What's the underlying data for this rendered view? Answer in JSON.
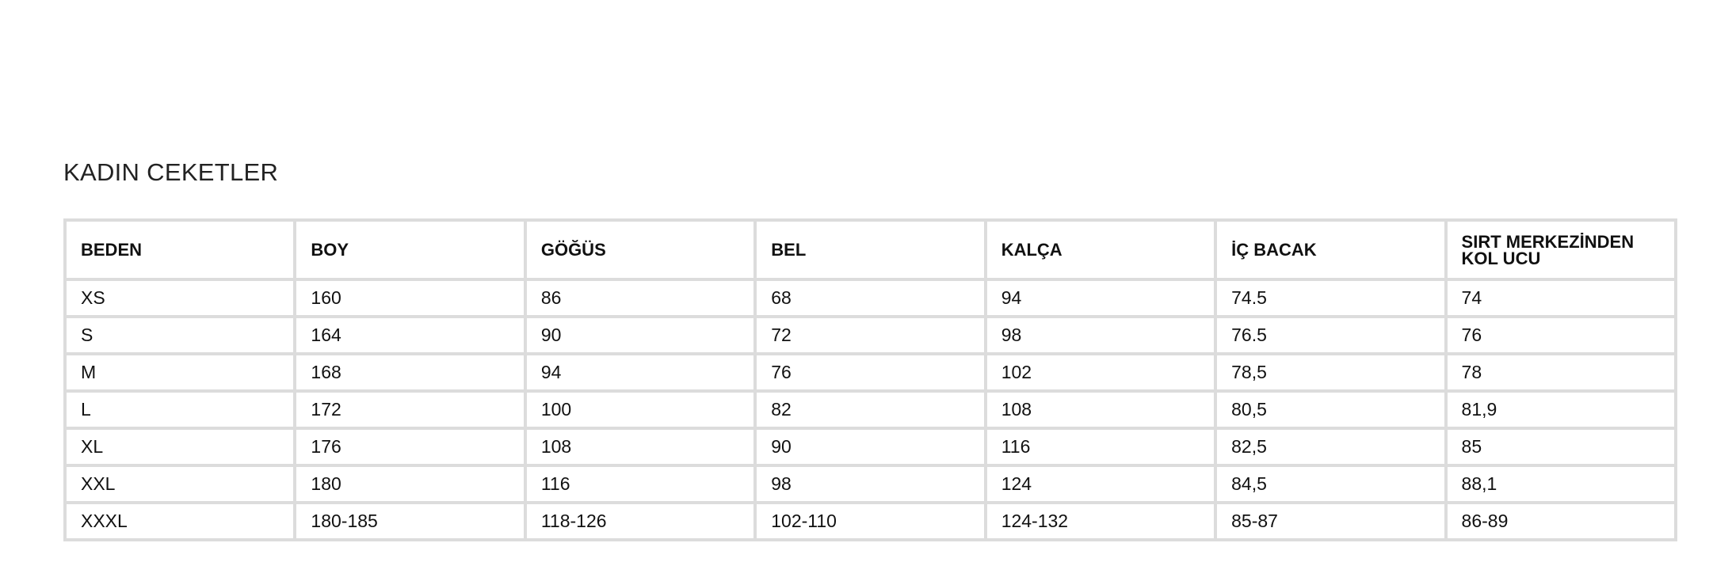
{
  "title": "KADIN CEKETLER",
  "table": {
    "headers": [
      "BEDEN",
      "BOY",
      "GÖĞÜS",
      "BEL",
      "KALÇA",
      "İÇ BACAK",
      "SIRT MERKEZİNDEN KOL UCU"
    ],
    "rows": [
      [
        "XS",
        "160",
        "86",
        "68",
        "94",
        "74.5",
        "74"
      ],
      [
        "S",
        "164",
        "90",
        "72",
        "98",
        "76.5",
        "76"
      ],
      [
        "M",
        "168",
        "94",
        "76",
        "102",
        "78,5",
        "78"
      ],
      [
        "L",
        "172",
        "100",
        "82",
        "108",
        "80,5",
        "81,9"
      ],
      [
        "XL",
        "176",
        "108",
        "90",
        "116",
        "82,5",
        "85"
      ],
      [
        "XXL",
        "180",
        "116",
        "98",
        "124",
        "84,5",
        "88,1"
      ],
      [
        "XXXL",
        "180-185",
        "118-126",
        "102-110",
        "124-132",
        "85-87",
        "86-89"
      ]
    ]
  },
  "colors": {
    "border": "#dcdcdc",
    "text": "#111111"
  }
}
